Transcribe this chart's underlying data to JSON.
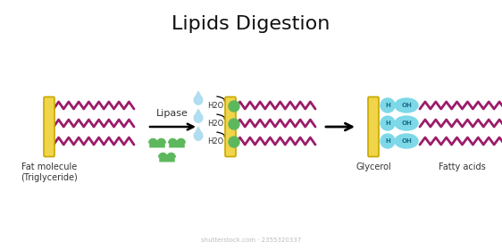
{
  "title": "Lipids Digestion",
  "title_fontsize": 16,
  "bg_color": "#ffffff",
  "fatty_acid_color": "#9B1C6A",
  "glycerol_bar_color": "#F0D44A",
  "glycerol_bar_edge": "#C8A800",
  "lipase_color": "#5DB85D",
  "water_color": "#B0DDEF",
  "cyan_bubble_color": "#7DD8E8",
  "cyan_text_color": "#1a6e8a",
  "arrow_color": "#000000",
  "label_fat": "Fat molecule\n(Triglyceride)",
  "label_glycerol": "Glycerol",
  "label_fatty_acids": "Fatty acids",
  "label_lipase": "Lipase",
  "label_h2o": "H2O",
  "watermark": "shutterstock.com · 2355320337",
  "fig_width": 5.62,
  "fig_height": 2.8,
  "dpi": 100
}
